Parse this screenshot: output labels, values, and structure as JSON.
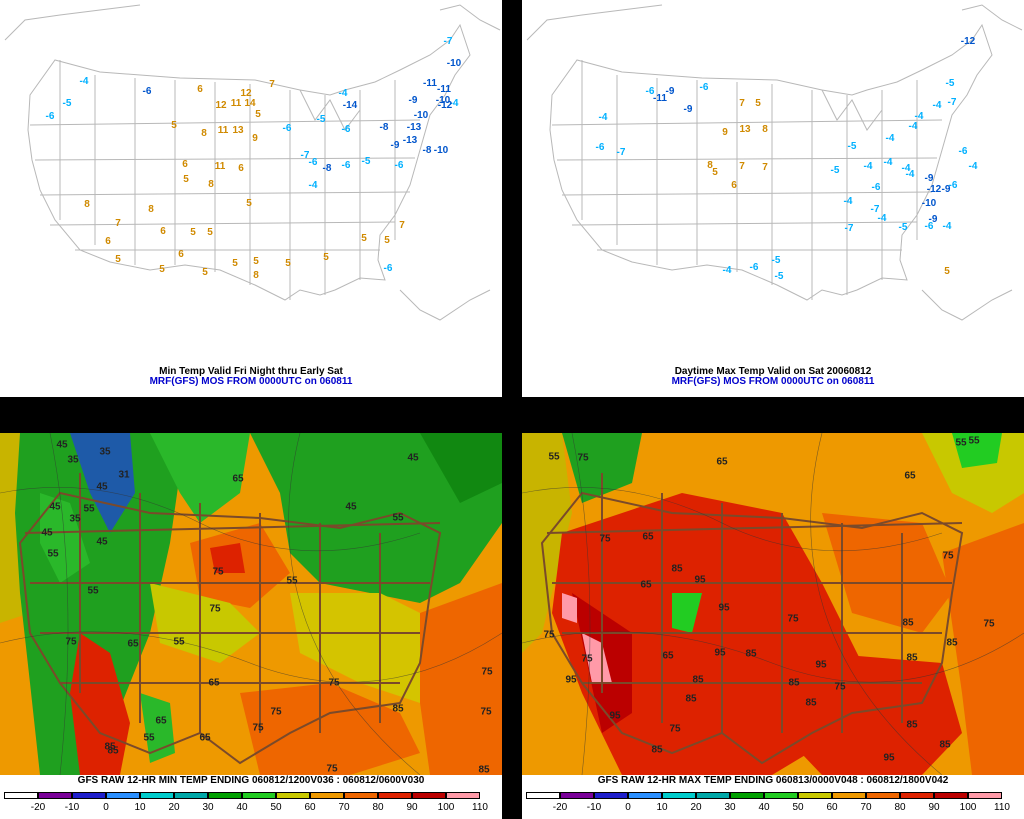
{
  "panels": {
    "top_left": {
      "caption_line1": "Min Temp Valid Fri Night thru Early Sat",
      "caption_line2": "MRF(GFS) MOS FROM 0000UTC on 060811",
      "labels": [
        {
          "t": "-7",
          "c": "cyan"
        },
        {
          "t": "-10",
          "c": "blue"
        },
        {
          "t": "-4",
          "c": "cyan"
        },
        {
          "t": "-6",
          "c": "blue"
        },
        {
          "t": "6",
          "c": "orange"
        },
        {
          "t": "7",
          "c": "orange"
        },
        {
          "t": "-5",
          "c": "cyan"
        },
        {
          "t": "12",
          "c": "orange"
        },
        {
          "t": "11",
          "c": "orange"
        },
        {
          "t": "14",
          "c": "orange"
        },
        {
          "t": "12",
          "c": "orange"
        },
        {
          "t": "-4",
          "c": "cyan"
        },
        {
          "t": "-11",
          "c": "blue"
        },
        {
          "t": "-11",
          "c": "blue"
        },
        {
          "t": "-10",
          "c": "blue"
        },
        {
          "t": "-14",
          "c": "blue"
        },
        {
          "t": "-4",
          "c": "cyan"
        },
        {
          "t": "-6",
          "c": "cyan"
        },
        {
          "t": "5",
          "c": "orange"
        },
        {
          "t": "11",
          "c": "orange"
        },
        {
          "t": "13",
          "c": "orange"
        },
        {
          "t": "5",
          "c": "orange"
        },
        {
          "t": "-12",
          "c": "blue"
        },
        {
          "t": "-9",
          "c": "blue"
        },
        {
          "t": "-10",
          "c": "blue"
        },
        {
          "t": "-13",
          "c": "blue"
        },
        {
          "t": "-8",
          "c": "blue"
        },
        {
          "t": "-5",
          "c": "cyan"
        },
        {
          "t": "-6",
          "c": "cyan"
        },
        {
          "t": "-6",
          "c": "cyan"
        },
        {
          "t": "8",
          "c": "orange"
        },
        {
          "t": "9",
          "c": "orange"
        },
        {
          "t": "-9",
          "c": "blue"
        },
        {
          "t": "-13",
          "c": "blue"
        },
        {
          "t": "-8",
          "c": "blue"
        },
        {
          "t": "-10",
          "c": "blue"
        },
        {
          "t": "-7",
          "c": "cyan"
        },
        {
          "t": "-6",
          "c": "cyan"
        },
        {
          "t": "-8",
          "c": "blue"
        },
        {
          "t": "6",
          "c": "orange"
        },
        {
          "t": "11",
          "c": "orange"
        },
        {
          "t": "6",
          "c": "orange"
        },
        {
          "t": "-6",
          "c": "cyan"
        },
        {
          "t": "-5",
          "c": "cyan"
        },
        {
          "t": "5",
          "c": "orange"
        },
        {
          "t": "8",
          "c": "orange"
        },
        {
          "t": "-6",
          "c": "cyan"
        },
        {
          "t": "-4",
          "c": "cyan"
        },
        {
          "t": "8",
          "c": "orange"
        },
        {
          "t": "8",
          "c": "orange"
        },
        {
          "t": "5",
          "c": "orange"
        },
        {
          "t": "7",
          "c": "orange"
        },
        {
          "t": "6",
          "c": "orange"
        },
        {
          "t": "5",
          "c": "orange"
        },
        {
          "t": "5",
          "c": "orange"
        },
        {
          "t": "7",
          "c": "orange"
        },
        {
          "t": "6",
          "c": "orange"
        },
        {
          "t": "6",
          "c": "orange"
        },
        {
          "t": "5",
          "c": "orange"
        },
        {
          "t": "5",
          "c": "orange"
        },
        {
          "t": "5",
          "c": "orange"
        },
        {
          "t": "5",
          "c": "orange"
        },
        {
          "t": "8",
          "c": "orange"
        },
        {
          "t": "5",
          "c": "orange"
        },
        {
          "t": "5",
          "c": "orange"
        },
        {
          "t": "5",
          "c": "orange"
        },
        {
          "t": "5",
          "c": "orange"
        },
        {
          "t": "5",
          "c": "orange"
        },
        {
          "t": "-6",
          "c": "cyan"
        }
      ]
    },
    "top_right": {
      "caption_line1": "Daytime Max Temp Valid on Sat 20060812",
      "caption_line2": "MRF(GFS) MOS FROM 0000UTC on 060811",
      "labels": [
        {
          "t": "-12",
          "c": "blue"
        },
        {
          "t": "-6",
          "c": "cyan"
        },
        {
          "t": "-9",
          "c": "blue"
        },
        {
          "t": "-11",
          "c": "blue"
        },
        {
          "t": "-6",
          "c": "cyan"
        },
        {
          "t": "-5",
          "c": "cyan"
        },
        {
          "t": "-7",
          "c": "cyan"
        },
        {
          "t": "-4",
          "c": "cyan"
        },
        {
          "t": "-9",
          "c": "blue"
        },
        {
          "t": "7",
          "c": "orange"
        },
        {
          "t": "5",
          "c": "orange"
        },
        {
          "t": "-4",
          "c": "cyan"
        },
        {
          "t": "-4",
          "c": "cyan"
        },
        {
          "t": "13",
          "c": "orange"
        },
        {
          "t": "8",
          "c": "orange"
        },
        {
          "t": "9",
          "c": "orange"
        },
        {
          "t": "-6",
          "c": "cyan"
        },
        {
          "t": "-7",
          "c": "cyan"
        },
        {
          "t": "-4",
          "c": "cyan"
        },
        {
          "t": "-4",
          "c": "cyan"
        },
        {
          "t": "-5",
          "c": "cyan"
        },
        {
          "t": "-5",
          "c": "cyan"
        },
        {
          "t": "8",
          "c": "orange"
        },
        {
          "t": "7",
          "c": "orange"
        },
        {
          "t": "7",
          "c": "orange"
        },
        {
          "t": "5",
          "c": "orange"
        },
        {
          "t": "-4",
          "c": "cyan"
        },
        {
          "t": "-4",
          "c": "cyan"
        },
        {
          "t": "-6",
          "c": "cyan"
        },
        {
          "t": "-4",
          "c": "cyan"
        },
        {
          "t": "6",
          "c": "orange"
        },
        {
          "t": "-4",
          "c": "cyan"
        },
        {
          "t": "-6",
          "c": "cyan"
        },
        {
          "t": "-9",
          "c": "blue"
        },
        {
          "t": "-12",
          "c": "blue"
        },
        {
          "t": "-9",
          "c": "blue"
        },
        {
          "t": "-4",
          "c": "cyan"
        },
        {
          "t": "-4",
          "c": "cyan"
        },
        {
          "t": "-7",
          "c": "cyan"
        },
        {
          "t": "-10",
          "c": "blue"
        },
        {
          "t": "-6",
          "c": "cyan"
        },
        {
          "t": "-9",
          "c": "blue"
        },
        {
          "t": "-4",
          "c": "cyan"
        },
        {
          "t": "-7",
          "c": "cyan"
        },
        {
          "t": "-5",
          "c": "cyan"
        },
        {
          "t": "-6",
          "c": "cyan"
        },
        {
          "t": "-4",
          "c": "cyan"
        },
        {
          "t": "-4",
          "c": "cyan"
        },
        {
          "t": "-6",
          "c": "cyan"
        },
        {
          "t": "-5",
          "c": "cyan"
        },
        {
          "t": "-5",
          "c": "cyan"
        },
        {
          "t": "5",
          "c": "orange"
        }
      ]
    },
    "bottom_left": {
      "title": "GFS RAW 12-HR MIN TEMP ENDING 060812/1200V036 : 060812/0600V030",
      "contour_labels": [
        "45",
        "35",
        "35",
        "31",
        "45",
        "55",
        "45",
        "35",
        "65",
        "45",
        "45",
        "45",
        "55",
        "75",
        "55",
        "55",
        "45",
        "55",
        "75",
        "65",
        "75",
        "55",
        "65",
        "85",
        "75",
        "75",
        "85",
        "55",
        "65",
        "65",
        "75",
        "75",
        "85",
        "85",
        "75",
        "75"
      ]
    },
    "bottom_right": {
      "title": "GFS RAW 12-HR MAX TEMP ENDING 060813/0000V048 : 060812/1800V042",
      "contour_labels": [
        "55",
        "55",
        "55",
        "75",
        "65",
        "65",
        "65",
        "95",
        "75",
        "85",
        "75",
        "65",
        "95",
        "75",
        "85",
        "65",
        "75",
        "95",
        "85",
        "95",
        "85",
        "75",
        "85",
        "85",
        "95",
        "85",
        "75",
        "95",
        "85",
        "85",
        "85",
        "75",
        "85",
        "85",
        "95",
        "75"
      ]
    }
  },
  "colorbar": {
    "ticks": [
      "-20",
      "-10",
      "0",
      "10",
      "20",
      "30",
      "40",
      "50",
      "60",
      "70",
      "80",
      "90",
      "100",
      "110"
    ],
    "colors": [
      "#ffffff",
      "#7a0099",
      "#1f1fcc",
      "#2a8fff",
      "#00cccc",
      "#00a8a8",
      "#00a000",
      "#22cc22",
      "#c8c800",
      "#ee9900",
      "#ee6600",
      "#dd2200",
      "#bb0000",
      "#ff9aa8"
    ]
  },
  "palette": {
    "cyan": "#00b0ff",
    "blue": "#0055cc",
    "orange": "#d08a00"
  }
}
